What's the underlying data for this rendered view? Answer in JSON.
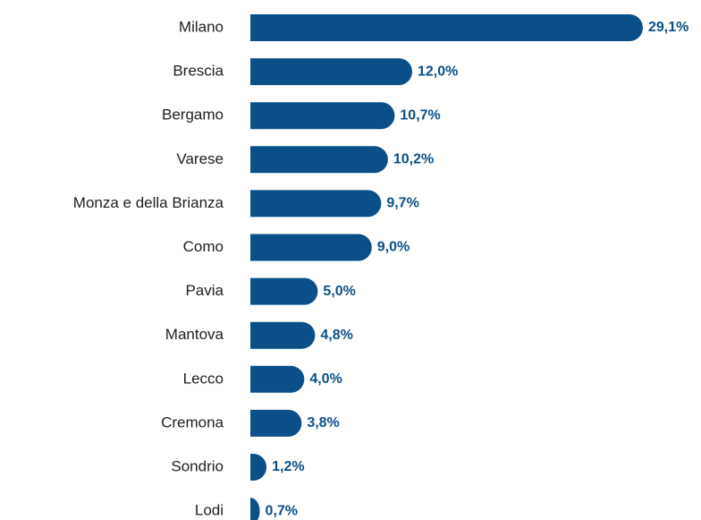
{
  "chart_data": {
    "type": "bar",
    "orientation": "horizontal",
    "categories": [
      "Milano",
      "Brescia",
      "Bergamo",
      "Varese",
      "Monza e della Brianza",
      "Como",
      "Pavia",
      "Mantova",
      "Lecco",
      "Cremona",
      "Sondrio",
      "Lodi"
    ],
    "values": [
      29.1,
      12.0,
      10.7,
      10.2,
      9.7,
      9.0,
      5.0,
      4.8,
      4.0,
      3.8,
      1.2,
      0.7
    ],
    "value_labels": [
      "29,1%",
      "12,0%",
      "10,7%",
      "10,2%",
      "9,7%",
      "9,0%",
      "5,0%",
      "4,8%",
      "4,0%",
      "3,8%",
      "1,2%",
      "0,7%"
    ],
    "color": "#0b4f89"
  }
}
